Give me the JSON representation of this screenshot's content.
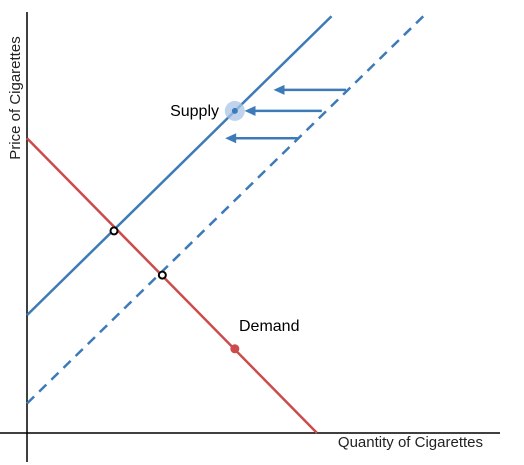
{
  "chart_data": {
    "type": "line",
    "xlabel": "Quantity of Cigarettes",
    "ylabel": "Price of Cigarettes",
    "xlim": [
      0,
      10
    ],
    "ylim": [
      0,
      10
    ],
    "grid": false,
    "colors": {
      "supply": "#3d7ab8",
      "demand": "#cc4b4b",
      "axis": "#000000",
      "highlight": "#a9c6e6"
    },
    "series": [
      {
        "name": "Supply",
        "style": "solid",
        "color": "#3d7ab8",
        "points": [
          [
            0,
            2.8
          ],
          [
            6.3,
            9.9
          ]
        ]
      },
      {
        "style": "dashed",
        "color": "#3d7ab8",
        "points": [
          [
            0,
            0.7
          ],
          [
            8.2,
            9.9
          ]
        ]
      },
      {
        "name": "Demand",
        "style": "solid",
        "color": "#cc4b4b",
        "points": [
          [
            0,
            7.0
          ],
          [
            6.0,
            0.0
          ]
        ]
      }
    ],
    "labels": [
      {
        "text": "Supply",
        "series": "Supply"
      },
      {
        "text": "Demand",
        "series": "Demand"
      }
    ],
    "markers": [
      {
        "kind": "open",
        "x": 1.8,
        "y": 4.8
      },
      {
        "kind": "open",
        "x": 2.8,
        "y": 3.75
      },
      {
        "kind": "filled",
        "color": "#cc4b4b",
        "x": 4.3,
        "y": 2.0
      },
      {
        "kind": "halo",
        "color": "#3d7ab8",
        "x": 4.3,
        "y": 7.65
      }
    ],
    "arrows": [
      {
        "from": [
          6.6,
          8.15
        ],
        "to": [
          5.1,
          8.15
        ]
      },
      {
        "from": [
          6.1,
          7.65
        ],
        "to": [
          4.5,
          7.65
        ]
      },
      {
        "from": [
          5.6,
          7.0
        ],
        "to": [
          4.1,
          7.0
        ]
      }
    ]
  }
}
